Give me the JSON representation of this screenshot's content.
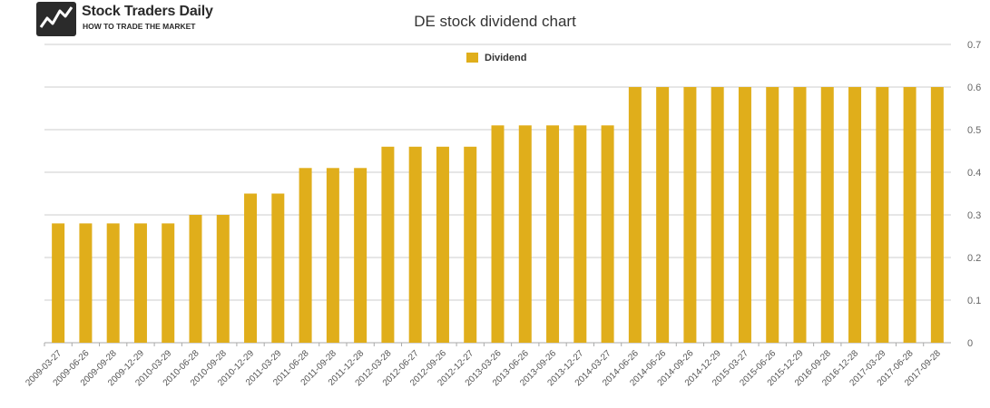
{
  "logo": {
    "name": "Stock Traders Daily",
    "tagline": "HOW TO TRADE THE MARKET"
  },
  "colors": {
    "bar": "#e0ae1b",
    "grid": "#cccccc",
    "axis": "#aaaaaa"
  },
  "chart_data": {
    "type": "bar",
    "title": "DE stock dividend chart",
    "xlabel": "",
    "ylabel": "",
    "ylim": [
      0,
      0.7
    ],
    "yticks": [
      0,
      0.1,
      0.2,
      0.3,
      0.4,
      0.5,
      0.6,
      0.7
    ],
    "grid": true,
    "legend_position": "top-center",
    "categories": [
      "2009-03-27",
      "2009-06-26",
      "2009-09-28",
      "2009-12-29",
      "2010-03-29",
      "2010-06-28",
      "2010-09-28",
      "2010-12-29",
      "2011-03-29",
      "2011-06-28",
      "2011-09-28",
      "2011-12-28",
      "2012-03-28",
      "2012-06-27",
      "2012-09-26",
      "2012-12-27",
      "2013-03-26",
      "2013-06-26",
      "2013-09-26",
      "2013-12-27",
      "2014-03-27",
      "2014-06-26",
      "2014-06-26",
      "2014-09-26",
      "2014-12-29",
      "2015-03-27",
      "2015-06-26",
      "2015-12-29",
      "2016-09-28",
      "2016-12-28",
      "2017-03-29",
      "2017-06-28",
      "2017-09-28"
    ],
    "series": [
      {
        "name": "Dividend",
        "values": [
          0.28,
          0.28,
          0.28,
          0.28,
          0.28,
          0.3,
          0.3,
          0.35,
          0.35,
          0.41,
          0.41,
          0.41,
          0.46,
          0.46,
          0.46,
          0.46,
          0.51,
          0.51,
          0.51,
          0.51,
          0.51,
          0.6,
          0.6,
          0.6,
          0.6,
          0.6,
          0.6,
          0.6,
          0.6,
          0.6,
          0.6,
          0.6,
          0.6
        ]
      }
    ]
  }
}
